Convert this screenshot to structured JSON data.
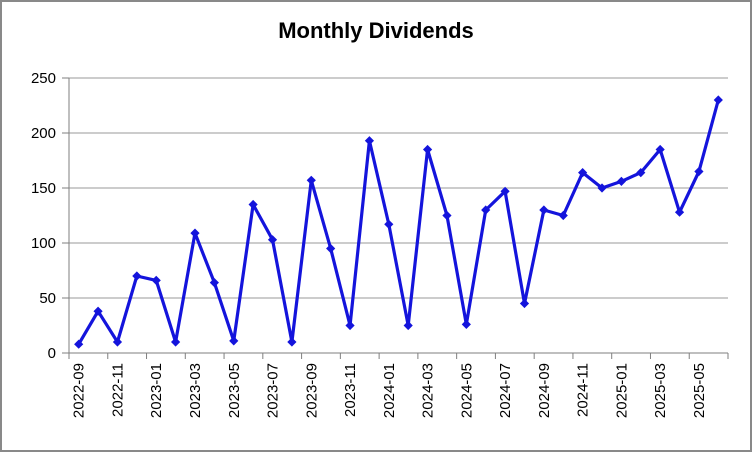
{
  "chart_data": {
    "type": "line",
    "title": "Monthly Dividends",
    "xlabel": "",
    "ylabel": "",
    "ylim": [
      0,
      250
    ],
    "y_ticks": [
      0,
      50,
      100,
      150,
      200,
      250
    ],
    "grid": true,
    "legend_position": "none",
    "marker": "diamond",
    "x_label_rotation_deg": 90,
    "x_label_every": 2,
    "categories": [
      "2022-09",
      "2022-10",
      "2022-11",
      "2022-12",
      "2023-01",
      "2023-02",
      "2023-03",
      "2023-04",
      "2023-05",
      "2023-06",
      "2023-07",
      "2023-08",
      "2023-09",
      "2023-10",
      "2023-11",
      "2023-12",
      "2024-01",
      "2024-02",
      "2024-03",
      "2024-04",
      "2024-05",
      "2024-06",
      "2024-07",
      "2024-08",
      "2024-09",
      "2024-10",
      "2024-11",
      "2024-12",
      "2025-01",
      "2025-02",
      "2025-03",
      "2025-04",
      "2025-05",
      "2025-06"
    ],
    "series": [
      {
        "name": "Monthly Dividends",
        "values": [
          8,
          38,
          10,
          70,
          66,
          10,
          109,
          64,
          11,
          135,
          103,
          10,
          157,
          95,
          25,
          193,
          117,
          25,
          185,
          125,
          26,
          130,
          147,
          45,
          130,
          125,
          164,
          150,
          156,
          164,
          185,
          128,
          165,
          230
        ]
      }
    ]
  },
  "colors": {
    "series_line": "#1414DC",
    "marker_fill": "#1414DC",
    "gridline": "#9A9A9A",
    "axis": "#7F7F7F",
    "frame_border": "#898989",
    "background": "#FFFFFF",
    "text": "#000000"
  }
}
